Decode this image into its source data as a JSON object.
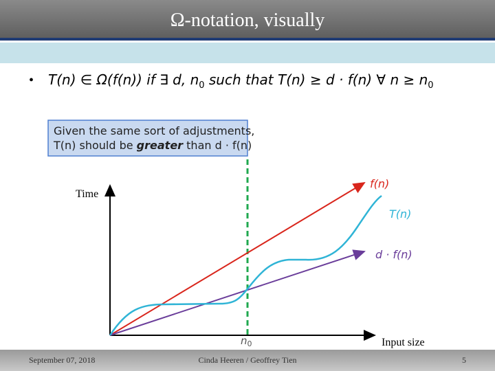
{
  "header": {
    "title": "Ω-notation, visually"
  },
  "bullet": {
    "parts": [
      "T(n) ∈ Ω(f(n)) if ∃ d, n",
      "0",
      " such that T(n) ≥ d · f(n) ∀ n ≥ n",
      "0"
    ]
  },
  "callout": {
    "line1": "Given the same sort of adjustments,",
    "line2": [
      "T(n) should be ",
      "greater",
      " than d · f(n)"
    ]
  },
  "diagram": {
    "y_axis_label": "Time",
    "x_axis_label": "Input size",
    "curves": [
      {
        "label": "f(n)"
      },
      {
        "label": "T(n)"
      },
      {
        "label": "d · f(n)"
      }
    ],
    "threshold": {
      "label": "n",
      "subscript": "0"
    }
  },
  "footer": {
    "date": "September 07, 2018",
    "authors": "Cinda Heeren / Geoffrey Tien",
    "page": "5"
  }
}
